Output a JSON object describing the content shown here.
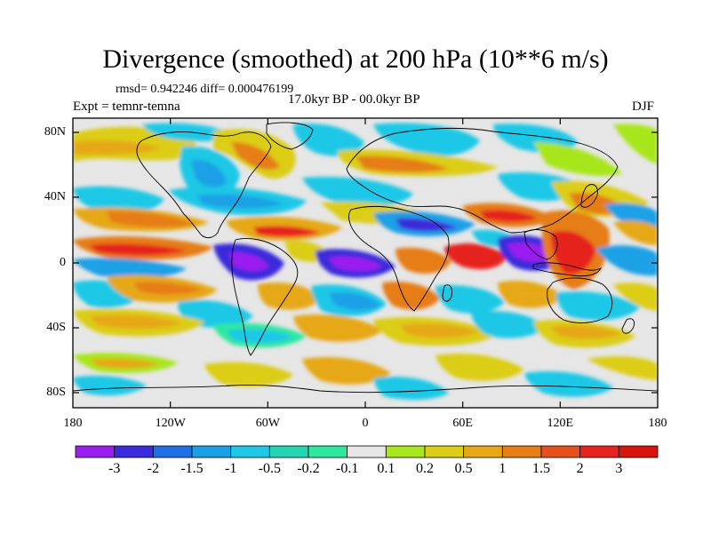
{
  "title": "Divergence (smoothed) at 200 hPa (10**6 m/s)",
  "stats": "rmsd= 0.942246 diff= 0.000476199",
  "experiment": "Expt = temnr-temna",
  "period": "17.0kyr BP - 00.0kyr BP",
  "season": "DJF",
  "lat_labels": [
    "80N",
    "40N",
    "0",
    "40S",
    "80S"
  ],
  "lon_labels": [
    "180",
    "120W",
    "60W",
    "0",
    "60E",
    "120E",
    "180"
  ],
  "colorbar": {
    "labels": [
      "-3",
      "-2",
      "-1.5",
      "-1",
      "-0.5",
      "-0.2",
      "-0.1",
      "0.1",
      "0.2",
      "0.5",
      "1",
      "1.5",
      "2",
      "3"
    ],
    "colors": [
      "#9b1ef0",
      "#3a2bdc",
      "#1f6fe6",
      "#1aa0e6",
      "#1fc8e6",
      "#23d5b2",
      "#2ee8a0",
      "#e6e6e6",
      "#a8e61e",
      "#dccd16",
      "#e6a816",
      "#e67d16",
      "#e6501a",
      "#e6231e",
      "#d7140e"
    ]
  },
  "field_colors": {
    "neutral": "#e6e6e6",
    "neg1": "#2ee8a0",
    "neg2": "#1fc8e6",
    "neg3": "#1aa0e6",
    "neg4": "#3a2bdc",
    "neg5": "#9b1ef0",
    "pos1": "#a8e61e",
    "pos2": "#dccd16",
    "pos3": "#e6a816",
    "pos4": "#e67d16",
    "pos5": "#e6231e"
  }
}
